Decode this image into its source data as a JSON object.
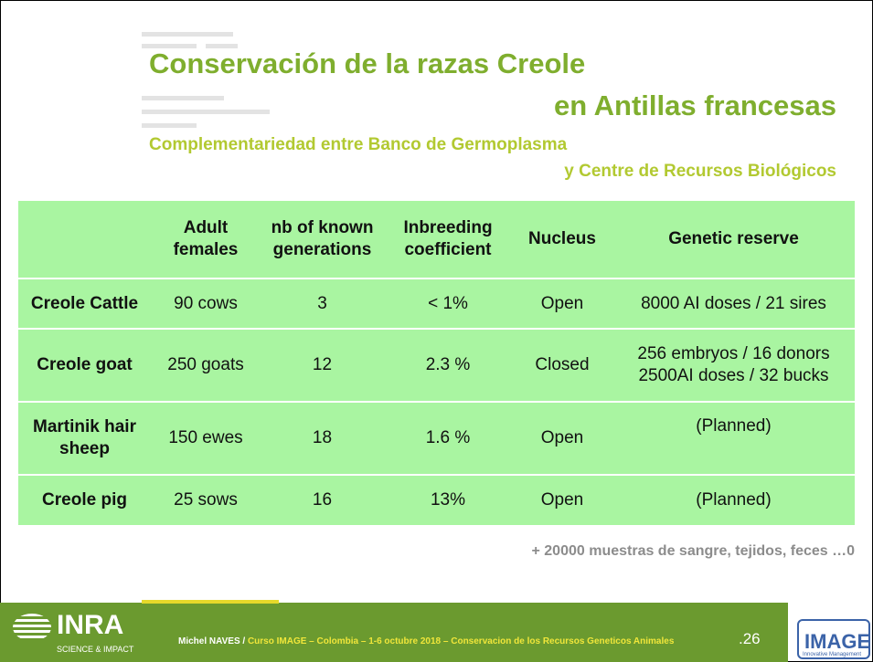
{
  "header": {
    "title_line1": "Conservación de la razas Creole",
    "title_line2": "en Antillas francesas",
    "subtitle_line1": "Complementariedad entre Banco de Germoplasma",
    "subtitle_line2": "y Centre de Recursos Biológicos"
  },
  "table": {
    "columns": [
      "",
      "Adult females",
      "nb of known generations",
      "Inbreeding coefficient",
      "Nucleus",
      "Genetic reserve"
    ],
    "rows": [
      [
        "Creole Cattle",
        "90 cows",
        "3",
        "< 1%",
        "Open",
        [
          "8000 AI doses / 21 sires"
        ]
      ],
      [
        "Creole goat",
        "250 goats",
        "12",
        "2.3 %",
        "Closed",
        [
          "256 embryos / 16 donors",
          "2500AI doses / 32 bucks"
        ]
      ],
      [
        "Martinik hair sheep",
        "150 ewes",
        "18",
        "1.6 %",
        "Open",
        [
          "(Planned)"
        ]
      ],
      [
        "Creole pig",
        "25 sows",
        "16",
        "13%",
        "Open",
        [
          "(Planned)"
        ]
      ]
    ]
  },
  "note": "+ 20000 muestras de sangre, tejidos, feces …0",
  "footer": {
    "author": "Michel NAVES /",
    "course": "Curso IMAGE – Colombia – 1-6 octubre 2018 – Conservacion de los Recursos Geneticos Animales",
    "page": ".26",
    "logo_left": "INRA",
    "logo_left_sub": "SCIENCE & IMPACT",
    "logo_right": "IMAGE",
    "logo_right_sub": "Innovative Management"
  }
}
